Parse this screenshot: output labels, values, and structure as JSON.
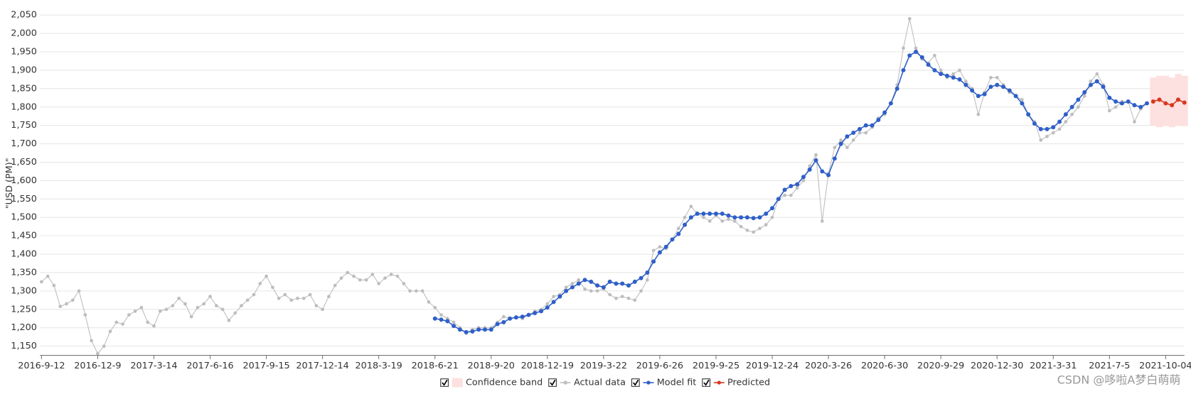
{
  "chart_data": {
    "type": "line",
    "y_label": "\"USD (PM)\"",
    "watermark": "CSDN @哆啦A梦白萌萌",
    "legend": "bottom",
    "grid": true,
    "ylim": [
      1125,
      2060
    ],
    "yticks": [
      {
        "value": 1150,
        "label": "1,150"
      },
      {
        "value": 1200,
        "label": "1,200"
      },
      {
        "value": 1250,
        "label": "1,250"
      },
      {
        "value": 1300,
        "label": "1,300"
      },
      {
        "value": 1350,
        "label": "1,350"
      },
      {
        "value": 1400,
        "label": "1,400"
      },
      {
        "value": 1450,
        "label": "1,450"
      },
      {
        "value": 1500,
        "label": "1,500"
      },
      {
        "value": 1550,
        "label": "1,550"
      },
      {
        "value": 1600,
        "label": "1,600"
      },
      {
        "value": 1650,
        "label": "1,650"
      },
      {
        "value": 1700,
        "label": "1,700"
      },
      {
        "value": 1750,
        "label": "1,750"
      },
      {
        "value": 1800,
        "label": "1,800"
      },
      {
        "value": 1850,
        "label": "1,850"
      },
      {
        "value": 1900,
        "label": "1,900"
      },
      {
        "value": 1950,
        "label": "1,950"
      },
      {
        "value": 2000,
        "label": "2,000"
      },
      {
        "value": 2050,
        "label": "2,050"
      }
    ],
    "categories": [
      "2016-9-12",
      null,
      null,
      null,
      null,
      null,
      null,
      null,
      null,
      "2016-12-9",
      null,
      null,
      null,
      null,
      null,
      null,
      null,
      null,
      "2017-3-14",
      null,
      null,
      null,
      null,
      null,
      null,
      null,
      null,
      "2017-6-16",
      null,
      null,
      null,
      null,
      null,
      null,
      null,
      null,
      "2017-9-15",
      null,
      null,
      null,
      null,
      null,
      null,
      null,
      null,
      "2017-12-14",
      null,
      null,
      null,
      null,
      null,
      null,
      null,
      null,
      "2018-3-19",
      null,
      null,
      null,
      null,
      null,
      null,
      null,
      null,
      "2018-6-21",
      null,
      null,
      null,
      null,
      null,
      null,
      null,
      null,
      "2018-9-20",
      null,
      null,
      null,
      null,
      null,
      null,
      null,
      null,
      "2018-12-19",
      null,
      null,
      null,
      null,
      null,
      null,
      null,
      null,
      "2019-3-22",
      null,
      null,
      null,
      null,
      null,
      null,
      null,
      null,
      "2019-6-26",
      null,
      null,
      null,
      null,
      null,
      null,
      null,
      null,
      "2019-9-25",
      null,
      null,
      null,
      null,
      null,
      null,
      null,
      null,
      "2019-12-24",
      null,
      null,
      null,
      null,
      null,
      null,
      null,
      null,
      "2020-3-26",
      null,
      null,
      null,
      null,
      null,
      null,
      null,
      null,
      "2020-6-30",
      null,
      null,
      null,
      null,
      null,
      null,
      null,
      null,
      "2020-9-29",
      null,
      null,
      null,
      null,
      null,
      null,
      null,
      null,
      "2020-12-30",
      null,
      null,
      null,
      null,
      null,
      null,
      null,
      null,
      "2021-3-31",
      null,
      null,
      null,
      null,
      null,
      null,
      null,
      null,
      "2021-7-5",
      null,
      null,
      null,
      null,
      null,
      null,
      null,
      null,
      "2021-10-04",
      null,
      null,
      null
    ],
    "series": [
      {
        "name": "Confidence band",
        "color": "#fde0e0",
        "lower": [
          null,
          null,
          null,
          null,
          null,
          null,
          null,
          null,
          null,
          null,
          null,
          null,
          null,
          null,
          null,
          null,
          null,
          null,
          null,
          null,
          null,
          null,
          null,
          null,
          null,
          null,
          null,
          null,
          null,
          null,
          null,
          null,
          null,
          null,
          null,
          null,
          null,
          null,
          null,
          null,
          null,
          null,
          null,
          null,
          null,
          null,
          null,
          null,
          null,
          null,
          null,
          null,
          null,
          null,
          null,
          null,
          null,
          null,
          null,
          null,
          null,
          null,
          null,
          null,
          null,
          null,
          null,
          null,
          null,
          null,
          null,
          null,
          null,
          null,
          null,
          null,
          null,
          null,
          null,
          null,
          null,
          null,
          null,
          null,
          null,
          null,
          null,
          null,
          null,
          null,
          null,
          null,
          null,
          null,
          null,
          null,
          null,
          null,
          null,
          null,
          null,
          null,
          null,
          null,
          null,
          null,
          null,
          null,
          null,
          null,
          null,
          null,
          null,
          null,
          null,
          null,
          null,
          null,
          null,
          null,
          null,
          null,
          null,
          null,
          null,
          null,
          null,
          null,
          null,
          null,
          null,
          null,
          null,
          null,
          null,
          null,
          null,
          null,
          null,
          null,
          null,
          null,
          null,
          null,
          null,
          null,
          null,
          null,
          null,
          null,
          null,
          null,
          null,
          null,
          null,
          null,
          null,
          null,
          null,
          null,
          null,
          null,
          null,
          null,
          null,
          null,
          null,
          null,
          null,
          null,
          null,
          null,
          null,
          null,
          null,
          null,
          null,
          null,
          1750,
          1745,
          1748,
          1745,
          1750,
          1748
        ],
        "upper": [
          null,
          null,
          null,
          null,
          null,
          null,
          null,
          null,
          null,
          null,
          null,
          null,
          null,
          null,
          null,
          null,
          null,
          null,
          null,
          null,
          null,
          null,
          null,
          null,
          null,
          null,
          null,
          null,
          null,
          null,
          null,
          null,
          null,
          null,
          null,
          null,
          null,
          null,
          null,
          null,
          null,
          null,
          null,
          null,
          null,
          null,
          null,
          null,
          null,
          null,
          null,
          null,
          null,
          null,
          null,
          null,
          null,
          null,
          null,
          null,
          null,
          null,
          null,
          null,
          null,
          null,
          null,
          null,
          null,
          null,
          null,
          null,
          null,
          null,
          null,
          null,
          null,
          null,
          null,
          null,
          null,
          null,
          null,
          null,
          null,
          null,
          null,
          null,
          null,
          null,
          null,
          null,
          null,
          null,
          null,
          null,
          null,
          null,
          null,
          null,
          null,
          null,
          null,
          null,
          null,
          null,
          null,
          null,
          null,
          null,
          null,
          null,
          null,
          null,
          null,
          null,
          null,
          null,
          null,
          null,
          null,
          null,
          null,
          null,
          null,
          null,
          null,
          null,
          null,
          null,
          null,
          null,
          null,
          null,
          null,
          null,
          null,
          null,
          null,
          null,
          null,
          null,
          null,
          null,
          null,
          null,
          null,
          null,
          null,
          null,
          null,
          null,
          null,
          null,
          null,
          null,
          null,
          null,
          null,
          null,
          null,
          null,
          null,
          null,
          null,
          null,
          null,
          null,
          null,
          null,
          null,
          null,
          null,
          null,
          null,
          null,
          null,
          null,
          1880,
          1885,
          1885,
          1880,
          1890,
          1885
        ]
      },
      {
        "name": "Actual data",
        "color": "#bdbdbd",
        "values": [
          1325,
          1340,
          1315,
          1258,
          1265,
          1275,
          1300,
          1235,
          1165,
          1130,
          1150,
          1190,
          1215,
          1210,
          1235,
          1245,
          1255,
          1215,
          1205,
          1245,
          1250,
          1260,
          1280,
          1265,
          1230,
          1255,
          1265,
          1285,
          1260,
          1250,
          1220,
          1240,
          1260,
          1275,
          1290,
          1320,
          1340,
          1310,
          1280,
          1290,
          1275,
          1280,
          1280,
          1290,
          1260,
          1250,
          1285,
          1315,
          1335,
          1350,
          1340,
          1330,
          1330,
          1345,
          1320,
          1335,
          1345,
          1340,
          1320,
          1300,
          1300,
          1300,
          1270,
          1255,
          1235,
          1225,
          1215,
          1200,
          1185,
          1195,
          1200,
          1200,
          1200,
          1215,
          1230,
          1225,
          1230,
          1225,
          1235,
          1245,
          1250,
          1265,
          1285,
          1290,
          1310,
          1320,
          1330,
          1305,
          1300,
          1300,
          1305,
          1290,
          1280,
          1285,
          1280,
          1275,
          1300,
          1330,
          1410,
          1420,
          1415,
          1440,
          1470,
          1500,
          1530,
          1510,
          1500,
          1490,
          1505,
          1490,
          1495,
          1490,
          1475,
          1465,
          1460,
          1470,
          1480,
          1500,
          1550,
          1560,
          1560,
          1580,
          1600,
          1640,
          1670,
          1490,
          1620,
          1690,
          1710,
          1690,
          1710,
          1730,
          1730,
          1745,
          1770,
          1780,
          1810,
          1860,
          1960,
          2040,
          1960,
          1930,
          1920,
          1940,
          1900,
          1880,
          1890,
          1900,
          1870,
          1850,
          1780,
          1840,
          1880,
          1880,
          1860,
          1840,
          1830,
          1820,
          1780,
          1760,
          1710,
          1720,
          1730,
          1740,
          1760,
          1780,
          1800,
          1830,
          1870,
          1890,
          1860,
          1790,
          1800,
          1815,
          1815,
          1760,
          1795,
          1810,
          null,
          null,
          null,
          null,
          null,
          null
        ]
      },
      {
        "name": "Model fit",
        "color": "#2f5fc8",
        "values": [
          null,
          null,
          null,
          null,
          null,
          null,
          null,
          null,
          null,
          null,
          null,
          null,
          null,
          null,
          null,
          null,
          null,
          null,
          null,
          null,
          null,
          null,
          null,
          null,
          null,
          null,
          null,
          null,
          null,
          null,
          null,
          null,
          null,
          null,
          null,
          null,
          null,
          null,
          null,
          null,
          null,
          null,
          null,
          null,
          null,
          null,
          null,
          null,
          null,
          null,
          null,
          null,
          null,
          null,
          null,
          null,
          null,
          null,
          null,
          null,
          null,
          null,
          null,
          1225,
          1222,
          1218,
          1205,
          1195,
          1188,
          1190,
          1195,
          1195,
          1195,
          1210,
          1215,
          1225,
          1228,
          1230,
          1235,
          1240,
          1245,
          1255,
          1270,
          1285,
          1300,
          1310,
          1320,
          1330,
          1325,
          1315,
          1310,
          1325,
          1320,
          1320,
          1315,
          1325,
          1335,
          1350,
          1380,
          1405,
          1420,
          1440,
          1455,
          1480,
          1500,
          1510,
          1510,
          1510,
          1510,
          1510,
          1505,
          1500,
          1500,
          1500,
          1498,
          1500,
          1510,
          1525,
          1550,
          1575,
          1585,
          1590,
          1610,
          1630,
          1655,
          1625,
          1615,
          1660,
          1700,
          1720,
          1730,
          1740,
          1750,
          1750,
          1765,
          1785,
          1810,
          1850,
          1900,
          1940,
          1950,
          1935,
          1915,
          1900,
          1890,
          1885,
          1880,
          1875,
          1860,
          1845,
          1830,
          1835,
          1855,
          1860,
          1855,
          1845,
          1830,
          1810,
          1780,
          1755,
          1740,
          1740,
          1745,
          1760,
          1780,
          1800,
          1820,
          1840,
          1860,
          1870,
          1855,
          1825,
          1815,
          1810,
          1815,
          1805,
          1800,
          1810,
          null,
          null,
          null,
          null,
          null,
          null
        ]
      },
      {
        "name": "Predicted",
        "color": "#d9381e",
        "values": [
          null,
          null,
          null,
          null,
          null,
          null,
          null,
          null,
          null,
          null,
          null,
          null,
          null,
          null,
          null,
          null,
          null,
          null,
          null,
          null,
          null,
          null,
          null,
          null,
          null,
          null,
          null,
          null,
          null,
          null,
          null,
          null,
          null,
          null,
          null,
          null,
          null,
          null,
          null,
          null,
          null,
          null,
          null,
          null,
          null,
          null,
          null,
          null,
          null,
          null,
          null,
          null,
          null,
          null,
          null,
          null,
          null,
          null,
          null,
          null,
          null,
          null,
          null,
          null,
          null,
          null,
          null,
          null,
          null,
          null,
          null,
          null,
          null,
          null,
          null,
          null,
          null,
          null,
          null,
          null,
          null,
          null,
          null,
          null,
          null,
          null,
          null,
          null,
          null,
          null,
          null,
          null,
          null,
          null,
          null,
          null,
          null,
          null,
          null,
          null,
          null,
          null,
          null,
          null,
          null,
          null,
          null,
          null,
          null,
          null,
          null,
          null,
          null,
          null,
          null,
          null,
          null,
          null,
          null,
          null,
          null,
          null,
          null,
          null,
          null,
          null,
          null,
          null,
          null,
          null,
          null,
          null,
          null,
          null,
          null,
          null,
          null,
          null,
          null,
          null,
          null,
          null,
          null,
          null,
          null,
          null,
          null,
          null,
          null,
          null,
          null,
          null,
          null,
          null,
          null,
          null,
          null,
          null,
          null,
          null,
          null,
          null,
          null,
          null,
          null,
          null,
          null,
          null,
          null,
          null,
          null,
          null,
          null,
          null,
          null,
          null,
          null,
          null,
          1815,
          1820,
          1810,
          1805,
          1820,
          1812
        ]
      }
    ]
  }
}
